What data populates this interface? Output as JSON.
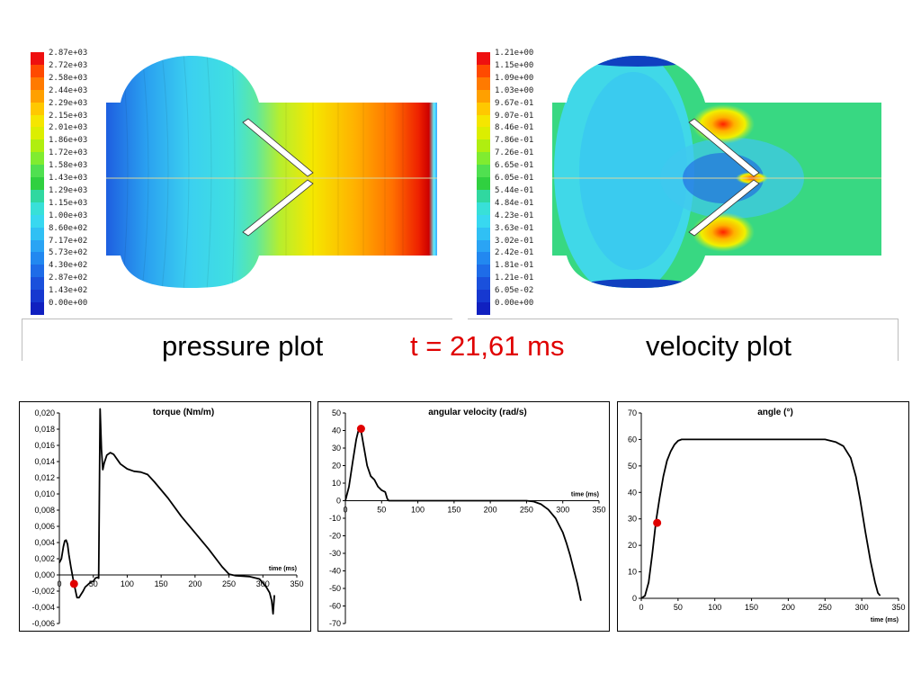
{
  "captions": {
    "pressure": "pressure plot",
    "time": "t = 21,61 ms",
    "velocity": "velocity plot"
  },
  "colors": {
    "time_caption": "#e00000",
    "marker": "#e00000",
    "line": "#000000"
  },
  "pressure_legend": {
    "values": [
      "2.87e+03",
      "2.72e+03",
      "2.58e+03",
      "2.44e+03",
      "2.29e+03",
      "2.15e+03",
      "2.01e+03",
      "1.86e+03",
      "1.72e+03",
      "1.58e+03",
      "1.43e+03",
      "1.29e+03",
      "1.15e+03",
      "1.00e+03",
      "8.60e+02",
      "7.17e+02",
      "5.73e+02",
      "4.30e+02",
      "2.87e+02",
      "1.43e+02",
      "0.00e+00"
    ]
  },
  "velocity_legend": {
    "values": [
      "1.21e+00",
      "1.15e+00",
      "1.09e+00",
      "1.03e+00",
      "9.67e-01",
      "9.07e-01",
      "8.46e-01",
      "7.86e-01",
      "7.26e-01",
      "6.65e-01",
      "6.05e-01",
      "5.44e-01",
      "4.84e-01",
      "4.23e-01",
      "3.63e-01",
      "3.02e-01",
      "2.42e-01",
      "1.81e-01",
      "1.21e-01",
      "6.05e-02",
      "0.00e+00"
    ]
  },
  "chart_data": [
    {
      "type": "line",
      "title": "torque (Nm/m)",
      "xlabel": "time (ms)",
      "ylabel": "",
      "xlim": [
        0,
        350
      ],
      "ylim": [
        -0.006,
        0.02
      ],
      "xticks": [
        "0",
        "50",
        "100",
        "150",
        "200",
        "250",
        "300",
        "350"
      ],
      "yticks": [
        "0,020",
        "0,018",
        "0,016",
        "0,014",
        "0,012",
        "0,010",
        "0,008",
        "0,006",
        "0,004",
        "0,002",
        "0,000",
        "-0,002",
        "-0,004",
        "-0,006"
      ],
      "series": [
        {
          "x": [
            0,
            3,
            6,
            8,
            10,
            12,
            14,
            17,
            20,
            23,
            26,
            29,
            32,
            35,
            38,
            42,
            46,
            50,
            53,
            56,
            58,
            60,
            62,
            64,
            66,
            70,
            75,
            80,
            85,
            90,
            100,
            110,
            120,
            130,
            140,
            160,
            180,
            200,
            220,
            240,
            250,
            260,
            280,
            295,
            300,
            305,
            310,
            313,
            315,
            317
          ],
          "y": [
            0.0015,
            0.002,
            0.0035,
            0.0042,
            0.0043,
            0.0038,
            0.0025,
            0.001,
            -0.0004,
            -0.0016,
            -0.0028,
            -0.0028,
            -0.0024,
            -0.002,
            -0.0015,
            -0.0012,
            -0.0009,
            -0.0008,
            -0.0004,
            -0.0003,
            -0.0004,
            0.0205,
            0.0155,
            0.013,
            0.0138,
            0.0148,
            0.0151,
            0.0149,
            0.0143,
            0.0137,
            0.0131,
            0.0128,
            0.0127,
            0.0124,
            0.0115,
            0.0095,
            0.0072,
            0.0052,
            0.0032,
            0.001,
            0.0001,
            -0.0001,
            -0.0002,
            -0.0005,
            -0.001,
            -0.0015,
            -0.0022,
            -0.0032,
            -0.0048,
            -0.0025
          ]
        }
      ],
      "marker": {
        "x": 21.61,
        "y": -0.0011
      }
    },
    {
      "type": "line",
      "title": "angular velocity (rad/s)",
      "xlabel": "time (ms)",
      "ylabel": "",
      "xlim": [
        0,
        350
      ],
      "ylim": [
        -70,
        50
      ],
      "xticks": [
        "0",
        "50",
        "100",
        "150",
        "200",
        "250",
        "300",
        "350"
      ],
      "yticks": [
        "50",
        "40",
        "30",
        "20",
        "10",
        "0",
        "-10",
        "-20",
        "-30",
        "-40",
        "-50",
        "-60",
        "-70"
      ],
      "series": [
        {
          "x": [
            0,
            5,
            10,
            15,
            18,
            20,
            22,
            25,
            30,
            35,
            40,
            45,
            50,
            55,
            58,
            60,
            100,
            150,
            200,
            250,
            260,
            270,
            280,
            290,
            300,
            305,
            310,
            315,
            320,
            325
          ],
          "y": [
            0,
            8,
            22,
            35,
            40,
            41,
            39,
            32,
            20,
            14,
            12,
            8,
            6,
            5,
            1,
            0,
            0,
            0,
            0,
            0,
            -0.5,
            -2,
            -5,
            -10,
            -18,
            -24,
            -31,
            -39,
            -47,
            -57
          ]
        }
      ],
      "marker": {
        "x": 21.61,
        "y": 41
      }
    },
    {
      "type": "line",
      "title": "angle (°)",
      "xlabel": "time (ms)",
      "ylabel": "",
      "xlim": [
        0,
        350
      ],
      "ylim": [
        0,
        70
      ],
      "xticks": [
        "0",
        "50",
        "100",
        "150",
        "200",
        "250",
        "300",
        "350"
      ],
      "yticks": [
        "70",
        "60",
        "50",
        "40",
        "30",
        "20",
        "10",
        "0"
      ],
      "series": [
        {
          "x": [
            0,
            5,
            10,
            15,
            20,
            25,
            30,
            35,
            40,
            45,
            50,
            55,
            60,
            100,
            150,
            200,
            250,
            265,
            275,
            285,
            292,
            298,
            305,
            312,
            318,
            322,
            325
          ],
          "y": [
            0,
            1,
            6,
            17,
            29,
            38,
            46,
            52,
            55.5,
            58,
            59.5,
            60,
            60,
            60,
            60,
            60,
            60,
            59,
            57.5,
            53,
            46,
            37,
            25,
            14,
            6,
            2,
            1
          ]
        }
      ],
      "marker": {
        "x": 21.61,
        "y": 28.5
      }
    }
  ]
}
